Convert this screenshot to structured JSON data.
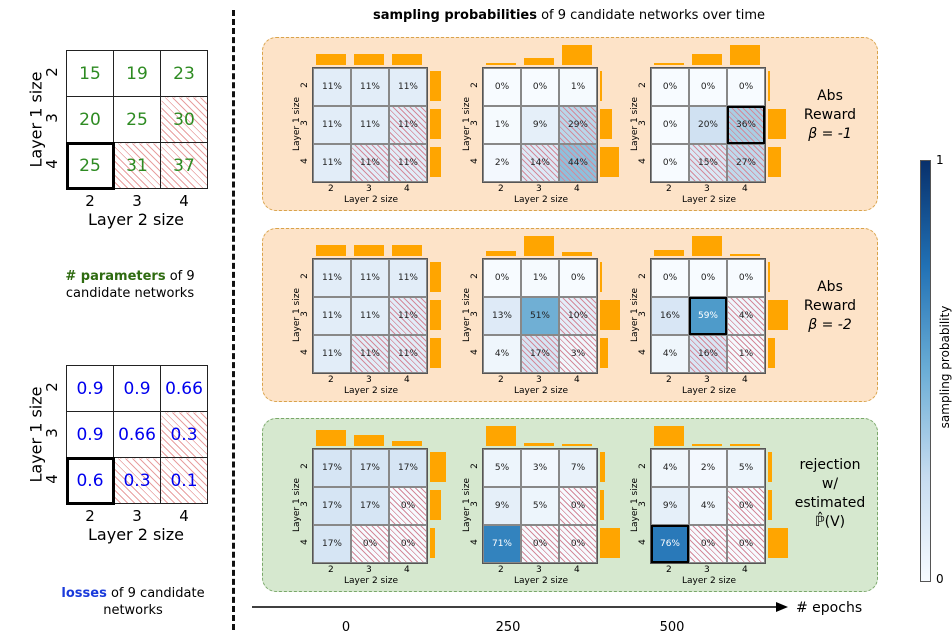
{
  "title": {
    "bold": "sampling probabilities",
    "rest": " of 9 candidate networks over time"
  },
  "params_grid": {
    "ylabel": "Layer 1 size",
    "xlabel": "Layer 2 size",
    "row_ticks": [
      "2",
      "3",
      "4"
    ],
    "col_ticks": [
      "2",
      "3",
      "4"
    ],
    "values": [
      [
        "15",
        "19",
        "23"
      ],
      [
        "20",
        "25",
        "30"
      ],
      [
        "25",
        "31",
        "37"
      ]
    ],
    "color": "#2e8b22",
    "caption_bold": "# parameters",
    "caption_rest": " of 9 candidate networks"
  },
  "loss_grid": {
    "ylabel": "Layer 1 size",
    "xlabel": "Layer 2 size",
    "row_ticks": [
      "2",
      "3",
      "4"
    ],
    "col_ticks": [
      "2",
      "3",
      "4"
    ],
    "values": [
      [
        "0.9",
        "0.9",
        "0.66"
      ],
      [
        "0.9",
        "0.66",
        "0.3"
      ],
      [
        "0.6",
        "0.3",
        "0.1"
      ]
    ],
    "color": "#0000ee",
    "caption_bold": "losses",
    "caption_rest": " of 9 candidate networks"
  },
  "mini_axes": {
    "ylabel": "Layer 1 size",
    "xlabel": "Layer 2 size",
    "ticks": [
      "2",
      "3",
      "4"
    ]
  },
  "rows": [
    {
      "label_lines": [
        "Abs",
        "Reward",
        "β = -1"
      ],
      "panel_fill": "#fde3c8",
      "panel_border": "#d9a34a",
      "grids": [
        [
          "11%",
          "11%",
          "11%",
          "11%",
          "11%",
          "11%",
          "11%",
          "11%",
          "11%"
        ],
        [
          "0%",
          "0%",
          "1%",
          "1%",
          "9%",
          "29%",
          "2%",
          "14%",
          "44%"
        ],
        [
          "0%",
          "0%",
          "0%",
          "0%",
          "20%",
          "36%",
          "0%",
          "15%",
          "27%"
        ]
      ]
    },
    {
      "label_lines": [
        "Abs",
        "Reward",
        "β = -2"
      ],
      "panel_fill": "#fde3c8",
      "panel_border": "#d9a34a",
      "grids": [
        [
          "11%",
          "11%",
          "11%",
          "11%",
          "11%",
          "11%",
          "11%",
          "11%",
          "11%"
        ],
        [
          "0%",
          "1%",
          "0%",
          "13%",
          "51%",
          "10%",
          "4%",
          "17%",
          "3%"
        ],
        [
          "0%",
          "0%",
          "0%",
          "16%",
          "59%",
          "4%",
          "4%",
          "16%",
          "1%"
        ]
      ]
    },
    {
      "label_lines": [
        "rejection",
        "w/",
        "estimated",
        "ℙ̂(V)"
      ],
      "panel_fill": "#d6e8cf",
      "panel_border": "#7aa86a",
      "grids": [
        [
          "17%",
          "17%",
          "17%",
          "17%",
          "17%",
          "0%",
          "17%",
          "0%",
          "0%"
        ],
        [
          "5%",
          "3%",
          "7%",
          "9%",
          "5%",
          "0%",
          "71%",
          "0%",
          "0%"
        ],
        [
          "4%",
          "2%",
          "5%",
          "9%",
          "4%",
          "0%",
          "76%",
          "0%",
          "0%"
        ]
      ]
    }
  ],
  "epochs": {
    "label": "# epochs",
    "ticks": [
      "0",
      "250",
      "500"
    ]
  },
  "colorbar": {
    "label": "sampling probability",
    "max": "1",
    "min": "0"
  }
}
